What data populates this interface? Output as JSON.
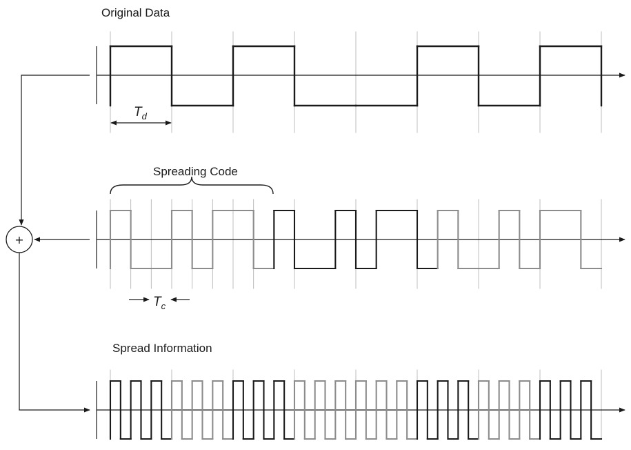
{
  "labels": {
    "original": "Original Data",
    "spreading": "Spreading Code",
    "spread_info": "Spread Information",
    "td_main": "T",
    "td_sub": "d",
    "tc_main": "T",
    "tc_sub": "c",
    "combiner": "+"
  },
  "signals": {
    "data_bits": [
      1,
      0,
      1,
      0,
      0,
      1,
      0,
      1
    ],
    "chips_per_bit": 3,
    "chip_pattern": [
      1,
      0,
      0,
      1,
      0,
      1,
      1,
      0
    ],
    "spread_chips": [
      1,
      0,
      1,
      1,
      0,
      1,
      0,
      1,
      0,
      1,
      0,
      1,
      0,
      1,
      0,
      1,
      0,
      1,
      0,
      1,
      0,
      1,
      0,
      1
    ],
    "highlight_cycle": 1
  },
  "colors": {
    "primary": "#1a1a1a",
    "secondary": "#8c8c8c",
    "grid": "#b5b5b5"
  }
}
